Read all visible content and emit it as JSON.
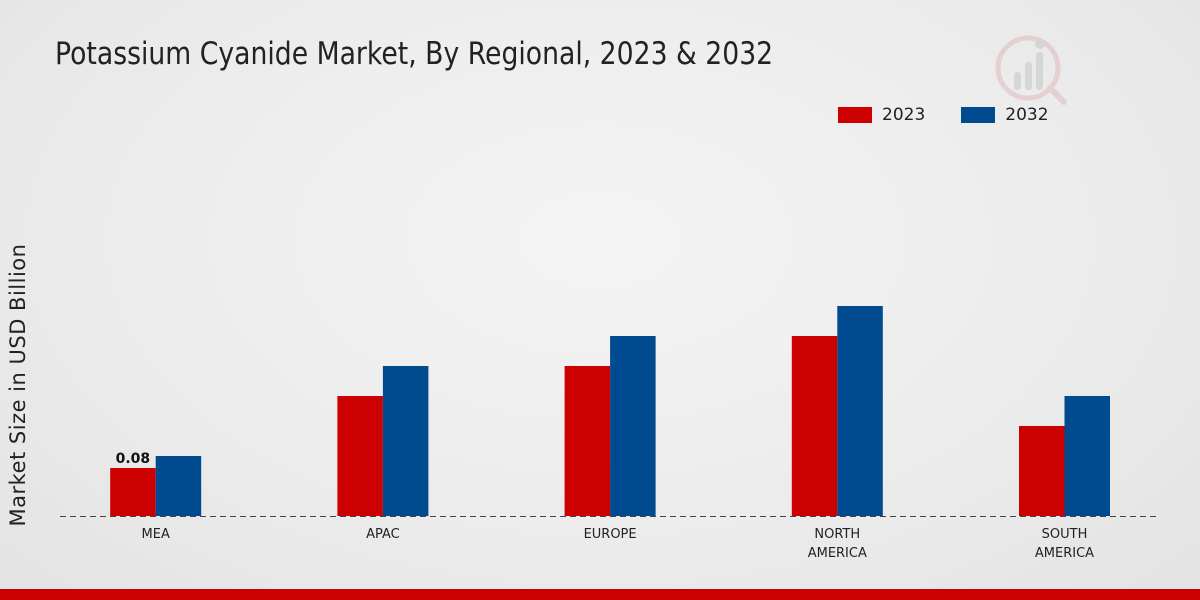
{
  "chart_data": {
    "type": "bar",
    "title": "Potassium Cyanide Market, By Regional, 2023 & 2032",
    "xlabel": "",
    "ylabel": "Market Size in USD Billion",
    "categories": [
      [
        "MEA"
      ],
      [
        "APAC"
      ],
      [
        "EUROPE"
      ],
      [
        "NORTH",
        "AMERICA"
      ],
      [
        "SOUTH",
        "AMERICA"
      ]
    ],
    "series": [
      {
        "name": "2023",
        "color": "#cc0000",
        "values": [
          0.08,
          0.2,
          0.25,
          0.3,
          0.15
        ]
      },
      {
        "name": "2032",
        "color": "#004a8f",
        "values": [
          0.1,
          0.25,
          0.3,
          0.35,
          0.2
        ]
      }
    ],
    "data_labels": [
      {
        "series": 0,
        "index": 0,
        "text": "0.08"
      }
    ],
    "ylim": [
      0,
      0.5
    ],
    "grid": false,
    "legend_position": "top-right"
  }
}
